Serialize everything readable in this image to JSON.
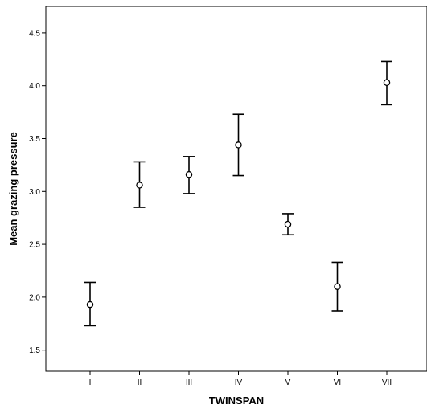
{
  "chart_data": {
    "type": "scatter",
    "subtype": "error-bar",
    "xlabel": "TWINSPAN",
    "ylabel": "Mean grazing pressure",
    "categories": [
      "I",
      "II",
      "III",
      "IV",
      "V",
      "VI",
      "VII"
    ],
    "means": [
      1.93,
      3.06,
      3.16,
      3.44,
      2.69,
      2.1,
      4.03
    ],
    "lower": [
      1.73,
      2.85,
      2.98,
      3.15,
      2.59,
      1.87,
      3.82
    ],
    "upper": [
      2.14,
      3.28,
      3.33,
      3.73,
      2.79,
      2.33,
      4.23
    ],
    "ylim": [
      1.3,
      4.75
    ],
    "yticks": [
      "1.5",
      "2.0",
      "2.5",
      "3.0",
      "3.5",
      "4.0",
      "4.5"
    ],
    "grid": false,
    "legend": "none",
    "colors": {
      "mark": "#000000",
      "frame": "#000000",
      "background": "#ffffff"
    }
  }
}
